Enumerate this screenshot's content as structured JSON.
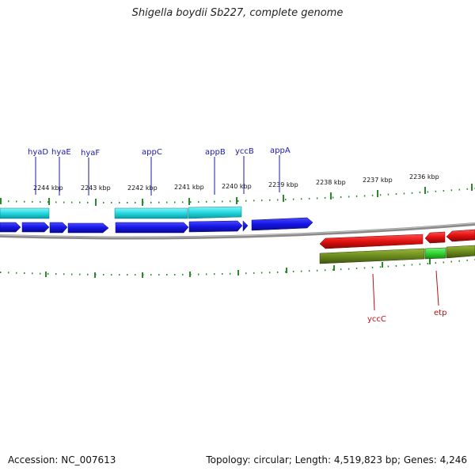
{
  "title": "Shigella boydii Sb227, complete genome",
  "accession": "Accession: NC_007613",
  "stats": "Topology: circular; Length: 4,519,823 bp; Genes: 4,246",
  "colors": {
    "forward_cds": "#1515e6",
    "forward_feature": "#22d8e0",
    "reverse_cds": "#e01010",
    "reverse_feature": "#6b8a1e",
    "reverse_feature_highlight": "#2ed42e",
    "tick": "#2a8a2a",
    "backbone": "#8a8a8a",
    "label_forward": "#1a1aa8",
    "label_reverse": "#c01010"
  },
  "ruler_labels": [
    "2244 kbp",
    "2243 kbp",
    "2242 kbp",
    "2241 kbp",
    "2240 kbp",
    "2239 kbp",
    "2238 kbp",
    "2237 kbp",
    "2236 kbp"
  ],
  "forward_genes": [
    "hyaD",
    "hyaE",
    "hyaF",
    "appC",
    "appB",
    "yccB",
    "appA"
  ],
  "reverse_genes": [
    "yccC",
    "etp"
  ]
}
